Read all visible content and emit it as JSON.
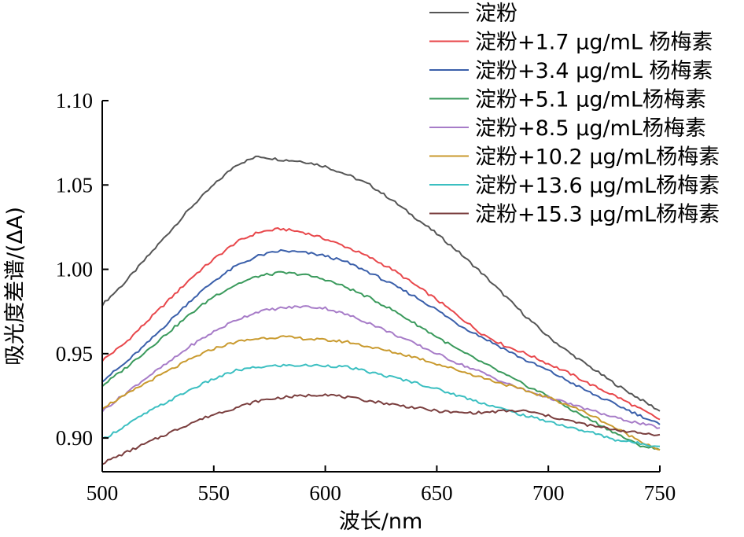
{
  "chart_data": {
    "type": "line",
    "xlabel": "波长/nm",
    "ylabel": "吸光度差谱/(ΔA)",
    "xlim": [
      500,
      750
    ],
    "ylim": [
      0.88,
      1.1
    ],
    "xticks": [
      500,
      550,
      600,
      650,
      700,
      750
    ],
    "yticks": [
      0.9,
      0.95,
      1.0,
      1.05,
      1.1
    ],
    "xtick_labels": [
      "500",
      "550",
      "600",
      "650",
      "700",
      "750"
    ],
    "ytick_labels": [
      "0.90",
      "0.95",
      "1.00",
      "1.05",
      "1.10"
    ],
    "grid": false,
    "legend_position": "top-right",
    "series": [
      {
        "name": "淀粉",
        "color": "#555555",
        "x": [
          500,
          510,
          520,
          530,
          540,
          550,
          560,
          570,
          580,
          590,
          600,
          610,
          620,
          630,
          640,
          650,
          660,
          670,
          680,
          690,
          700,
          710,
          720,
          730,
          740,
          750
        ],
        "y": [
          0.979,
          0.992,
          1.007,
          1.022,
          1.037,
          1.05,
          1.062,
          1.067,
          1.065,
          1.064,
          1.061,
          1.056,
          1.05,
          1.041,
          1.031,
          1.021,
          1.01,
          0.998,
          0.985,
          0.972,
          0.96,
          0.95,
          0.941,
          0.932,
          0.924,
          0.916
        ]
      },
      {
        "name": "淀粉+1.7 μg/mL 杨梅素",
        "color": "#e8474b",
        "x": [
          500,
          510,
          520,
          530,
          540,
          550,
          560,
          570,
          580,
          590,
          600,
          610,
          620,
          630,
          640,
          650,
          660,
          670,
          680,
          690,
          700,
          710,
          720,
          730,
          740,
          750
        ],
        "y": [
          0.946,
          0.956,
          0.969,
          0.982,
          0.995,
          1.006,
          1.016,
          1.022,
          1.024,
          1.022,
          1.018,
          1.013,
          1.007,
          1.0,
          0.991,
          0.982,
          0.972,
          0.962,
          0.955,
          0.95,
          0.944,
          0.938,
          0.931,
          0.925,
          0.918,
          0.911
        ]
      },
      {
        "name": "淀粉+3.4 μg/mL 杨梅素",
        "color": "#3a5faa",
        "x": [
          500,
          510,
          520,
          530,
          540,
          550,
          560,
          570,
          580,
          590,
          600,
          610,
          620,
          630,
          640,
          650,
          660,
          670,
          680,
          690,
          700,
          710,
          720,
          730,
          740,
          750
        ],
        "y": [
          0.934,
          0.944,
          0.956,
          0.969,
          0.982,
          0.993,
          1.002,
          1.008,
          1.011,
          1.01,
          1.008,
          1.004,
          0.998,
          0.991,
          0.984,
          0.976,
          0.967,
          0.96,
          0.953,
          0.946,
          0.94,
          0.933,
          0.926,
          0.92,
          0.914,
          0.908
        ]
      },
      {
        "name": "淀粉+5.1 μg/mL杨梅素",
        "color": "#3a9a5c",
        "x": [
          500,
          510,
          520,
          530,
          540,
          550,
          560,
          570,
          580,
          590,
          600,
          610,
          620,
          630,
          640,
          650,
          660,
          670,
          680,
          690,
          700,
          710,
          720,
          730,
          740,
          750
        ],
        "y": [
          0.931,
          0.941,
          0.952,
          0.963,
          0.974,
          0.984,
          0.991,
          0.996,
          0.998,
          0.997,
          0.994,
          0.989,
          0.983,
          0.976,
          0.968,
          0.96,
          0.952,
          0.945,
          0.938,
          0.931,
          0.925,
          0.917,
          0.91,
          0.903,
          0.896,
          0.893
        ]
      },
      {
        "name": "淀粉+8.5 μg/mL杨梅素",
        "color": "#a77cc8",
        "x": [
          500,
          510,
          520,
          530,
          540,
          550,
          560,
          570,
          580,
          590,
          600,
          610,
          620,
          630,
          640,
          650,
          660,
          670,
          680,
          690,
          700,
          710,
          720,
          730,
          740,
          750
        ],
        "y": [
          0.916,
          0.926,
          0.936,
          0.945,
          0.955,
          0.963,
          0.97,
          0.975,
          0.977,
          0.978,
          0.977,
          0.973,
          0.968,
          0.962,
          0.956,
          0.95,
          0.944,
          0.939,
          0.933,
          0.928,
          0.924,
          0.92,
          0.916,
          0.912,
          0.909,
          0.906
        ]
      },
      {
        "name": "淀粉+10.2 μg/mL杨梅素",
        "color": "#c99a2e",
        "x": [
          500,
          510,
          520,
          530,
          540,
          550,
          560,
          570,
          580,
          590,
          600,
          610,
          620,
          630,
          640,
          650,
          660,
          670,
          680,
          690,
          700,
          710,
          720,
          730,
          740,
          750
        ],
        "y": [
          0.918,
          0.925,
          0.933,
          0.94,
          0.947,
          0.953,
          0.957,
          0.959,
          0.96,
          0.959,
          0.958,
          0.957,
          0.954,
          0.951,
          0.948,
          0.944,
          0.94,
          0.936,
          0.932,
          0.928,
          0.924,
          0.919,
          0.913,
          0.906,
          0.899,
          0.893
        ]
      },
      {
        "name": "淀粉+13.6 μg/mL杨梅素",
        "color": "#3bbfc1",
        "x": [
          500,
          510,
          520,
          530,
          540,
          550,
          560,
          570,
          580,
          590,
          600,
          610,
          620,
          630,
          640,
          650,
          660,
          670,
          680,
          690,
          700,
          710,
          720,
          730,
          740,
          750
        ],
        "y": [
          0.899,
          0.907,
          0.915,
          0.922,
          0.929,
          0.935,
          0.94,
          0.942,
          0.943,
          0.943,
          0.943,
          0.942,
          0.939,
          0.936,
          0.933,
          0.929,
          0.925,
          0.921,
          0.917,
          0.913,
          0.91,
          0.906,
          0.903,
          0.899,
          0.897,
          0.895
        ]
      },
      {
        "name": "淀粉+15.3 μg/mL杨梅素",
        "color": "#7a3e3e",
        "x": [
          500,
          510,
          520,
          530,
          540,
          550,
          560,
          570,
          580,
          590,
          600,
          610,
          620,
          630,
          640,
          650,
          660,
          670,
          680,
          690,
          700,
          710,
          720,
          730,
          740,
          750
        ],
        "y": [
          0.885,
          0.891,
          0.897,
          0.903,
          0.909,
          0.914,
          0.918,
          0.922,
          0.924,
          0.925,
          0.926,
          0.924,
          0.922,
          0.92,
          0.918,
          0.916,
          0.915,
          0.915,
          0.916,
          0.916,
          0.913,
          0.91,
          0.907,
          0.905,
          0.903,
          0.902
        ]
      }
    ]
  }
}
